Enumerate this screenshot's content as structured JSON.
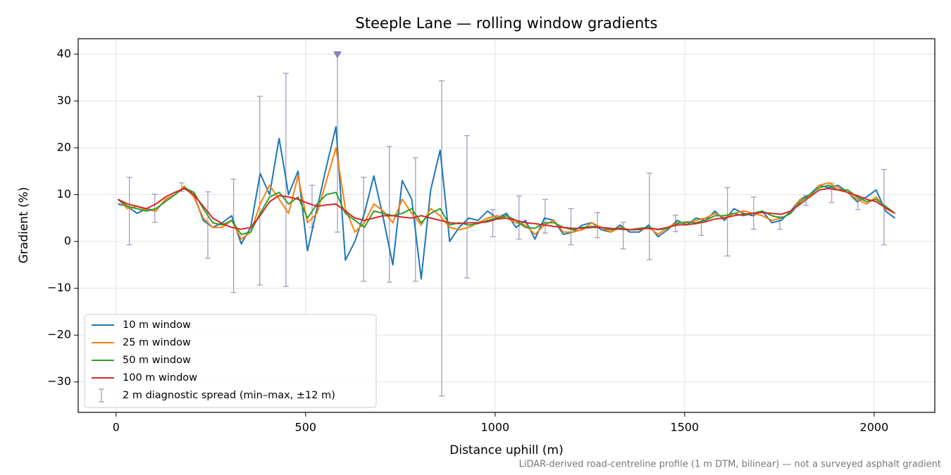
{
  "chart_data": {
    "type": "line",
    "title": "Steeple Lane — rolling window gradients",
    "x_label": "Distance uphill (m)",
    "y_label": "Gradient (%)",
    "footnote": "LiDAR-derived road-centreline profile (1 m DTM, bilinear) — not a surveyed asphalt gradient",
    "xlim": [
      -100,
      2160
    ],
    "ylim": [
      -36.5,
      43.3
    ],
    "xticks": [
      0,
      500,
      1000,
      1500,
      2000
    ],
    "yticks": [
      {
        "value": -30,
        "label": "−30"
      },
      {
        "value": -20,
        "label": "−20"
      },
      {
        "value": -10,
        "label": "−10"
      },
      0,
      10,
      20,
      30,
      40
    ],
    "grid": true,
    "legend": "lower left",
    "x": [
      5,
      30,
      55,
      80,
      105,
      130,
      155,
      180,
      205,
      230,
      255,
      280,
      305,
      330,
      355,
      380,
      405,
      430,
      455,
      480,
      505,
      530,
      555,
      580,
      605,
      630,
      655,
      680,
      705,
      730,
      755,
      780,
      805,
      830,
      855,
      880,
      905,
      930,
      955,
      980,
      1005,
      1030,
      1055,
      1080,
      1105,
      1130,
      1155,
      1180,
      1205,
      1230,
      1255,
      1280,
      1305,
      1330,
      1355,
      1380,
      1405,
      1430,
      1455,
      1480,
      1505,
      1530,
      1555,
      1580,
      1605,
      1630,
      1655,
      1680,
      1705,
      1730,
      1755,
      1780,
      1805,
      1830,
      1855,
      1880,
      1905,
      1930,
      1955,
      1980,
      2005,
      2030,
      2055
    ],
    "series": [
      {
        "name": "10 m window",
        "color": "#1f77b4",
        "values": [
          8,
          7.5,
          6,
          7,
          6.5,
          9,
          10,
          11.5,
          10,
          4.5,
          3,
          4,
          5.5,
          -0.5,
          3,
          14.5,
          10,
          22,
          10,
          15,
          -2,
          7,
          16,
          24.5,
          -4,
          0,
          6,
          14,
          5,
          -5,
          13,
          9,
          -8,
          11,
          19.5,
          0,
          3,
          5,
          4.5,
          6.5,
          5,
          6,
          3,
          4.5,
          0.5,
          5,
          4.5,
          1.5,
          2,
          3.5,
          4,
          2.5,
          2,
          3.5,
          2,
          2,
          3.5,
          1,
          2.5,
          4.5,
          3.5,
          5,
          4.5,
          6.5,
          4.5,
          7,
          6,
          5.5,
          6.5,
          4,
          4.5,
          6.5,
          9,
          10,
          12,
          11.5,
          12,
          10.5,
          8.5,
          9.5,
          11,
          6.5,
          5
        ]
      },
      {
        "name": "25 m window",
        "color": "#ff7f0e",
        "values": [
          9,
          7,
          7.5,
          6.8,
          6.5,
          9,
          10,
          11.8,
          9.5,
          5,
          3,
          3,
          4.5,
          0.5,
          2,
          8,
          12,
          9,
          6,
          14,
          4,
          6,
          13,
          20,
          7,
          2,
          4,
          8,
          6.5,
          4,
          9,
          6,
          3.5,
          7,
          5.5,
          3,
          2.5,
          3,
          4,
          5,
          5.5,
          5,
          4,
          3.5,
          1.5,
          3.5,
          4.5,
          2,
          2,
          2.5,
          4,
          3,
          2,
          3,
          2.5,
          2.5,
          3,
          1.5,
          3,
          4,
          4,
          4.5,
          5,
          6,
          5,
          6,
          6.5,
          6,
          5.5,
          4.5,
          5,
          6,
          9,
          9.5,
          12,
          12.5,
          11.5,
          10.5,
          9,
          8,
          9.5,
          7,
          6
        ]
      },
      {
        "name": "50 m window",
        "color": "#2ca02c",
        "values": [
          9,
          7.5,
          7,
          6.5,
          7,
          8.5,
          10,
          11.5,
          10.5,
          7,
          4,
          3.5,
          4.5,
          1.5,
          2,
          6,
          9.5,
          10.5,
          8,
          9.5,
          5,
          8,
          10,
          10.5,
          6,
          4.5,
          3,
          6.5,
          6,
          5.5,
          6,
          7,
          4,
          6,
          7,
          3.5,
          4,
          3.5,
          3.8,
          4.5,
          5,
          5.5,
          4.5,
          3,
          2.8,
          4,
          4,
          3,
          2.5,
          3,
          3.2,
          3,
          2.5,
          2.8,
          2.5,
          2.8,
          3,
          2.5,
          2.8,
          3.8,
          4.2,
          4,
          4.5,
          5.5,
          5.5,
          6,
          5.5,
          6,
          6.5,
          5.5,
          5,
          6,
          8.5,
          10,
          11.5,
          12,
          11,
          11,
          9.5,
          8.5,
          9,
          7.5,
          6
        ]
      },
      {
        "name": "100 m window",
        "color": "#d62728",
        "values": [
          9,
          8,
          7.5,
          7,
          8,
          9.5,
          10.5,
          11.3,
          10,
          7.5,
          5,
          3.8,
          3,
          2.6,
          3,
          5.5,
          8.5,
          9.8,
          9.5,
          9,
          8.2,
          7.5,
          7.8,
          8,
          6.5,
          5,
          4.5,
          5,
          5.5,
          5.5,
          5.2,
          5,
          5.5,
          5,
          4.5,
          4,
          3.8,
          4,
          4,
          4.2,
          4.8,
          5,
          4.5,
          4,
          3.8,
          3.5,
          3.2,
          3,
          2.8,
          2.8,
          3,
          3,
          2.8,
          2.6,
          2.5,
          2.6,
          2.8,
          2.6,
          3,
          3.5,
          3.6,
          3.8,
          4.2,
          4.8,
          5,
          5.5,
          5.8,
          6,
          6.2,
          6,
          5.8,
          6.5,
          8,
          9.5,
          11,
          11.3,
          11,
          10.5,
          9.8,
          9,
          8.5,
          7.2,
          6
        ]
      }
    ],
    "errorbars": {
      "name": "2 m diagnostic spread (min–max, ±12 m)",
      "color": "#a39cc4",
      "x": [
        35,
        102,
        173,
        242,
        310,
        379,
        448,
        517,
        584,
        653,
        721,
        790,
        859,
        926,
        994,
        1063,
        1132,
        1200,
        1270,
        1338,
        1407,
        1476,
        1544,
        1613,
        1682,
        1751,
        1820,
        1888,
        1957,
        2026
      ],
      "min": [
        -0.7,
        4.1,
        10.7,
        -3.6,
        -10.9,
        -9.3,
        -9.6,
        3,
        2,
        -8.5,
        -8.7,
        -8.5,
        -33,
        -7.8,
        1,
        0.5,
        1.8,
        -0.7,
        0.8,
        -1.6,
        -3.9,
        2.1,
        1.3,
        -3.1,
        2.6,
        2.6,
        7.7,
        8.3,
        6.8,
        -0.7
      ],
      "max": [
        13.7,
        10.1,
        12.5,
        10.6,
        13.3,
        31,
        35.9,
        12,
        40,
        13.7,
        20.3,
        17.9,
        34.3,
        22.6,
        6.8,
        9.7,
        9,
        7,
        6.2,
        4.1,
        14.6,
        5.6,
        4.9,
        11.5,
        9.5,
        5.3,
        9.8,
        12.5,
        9.1,
        15.4
      ]
    }
  }
}
